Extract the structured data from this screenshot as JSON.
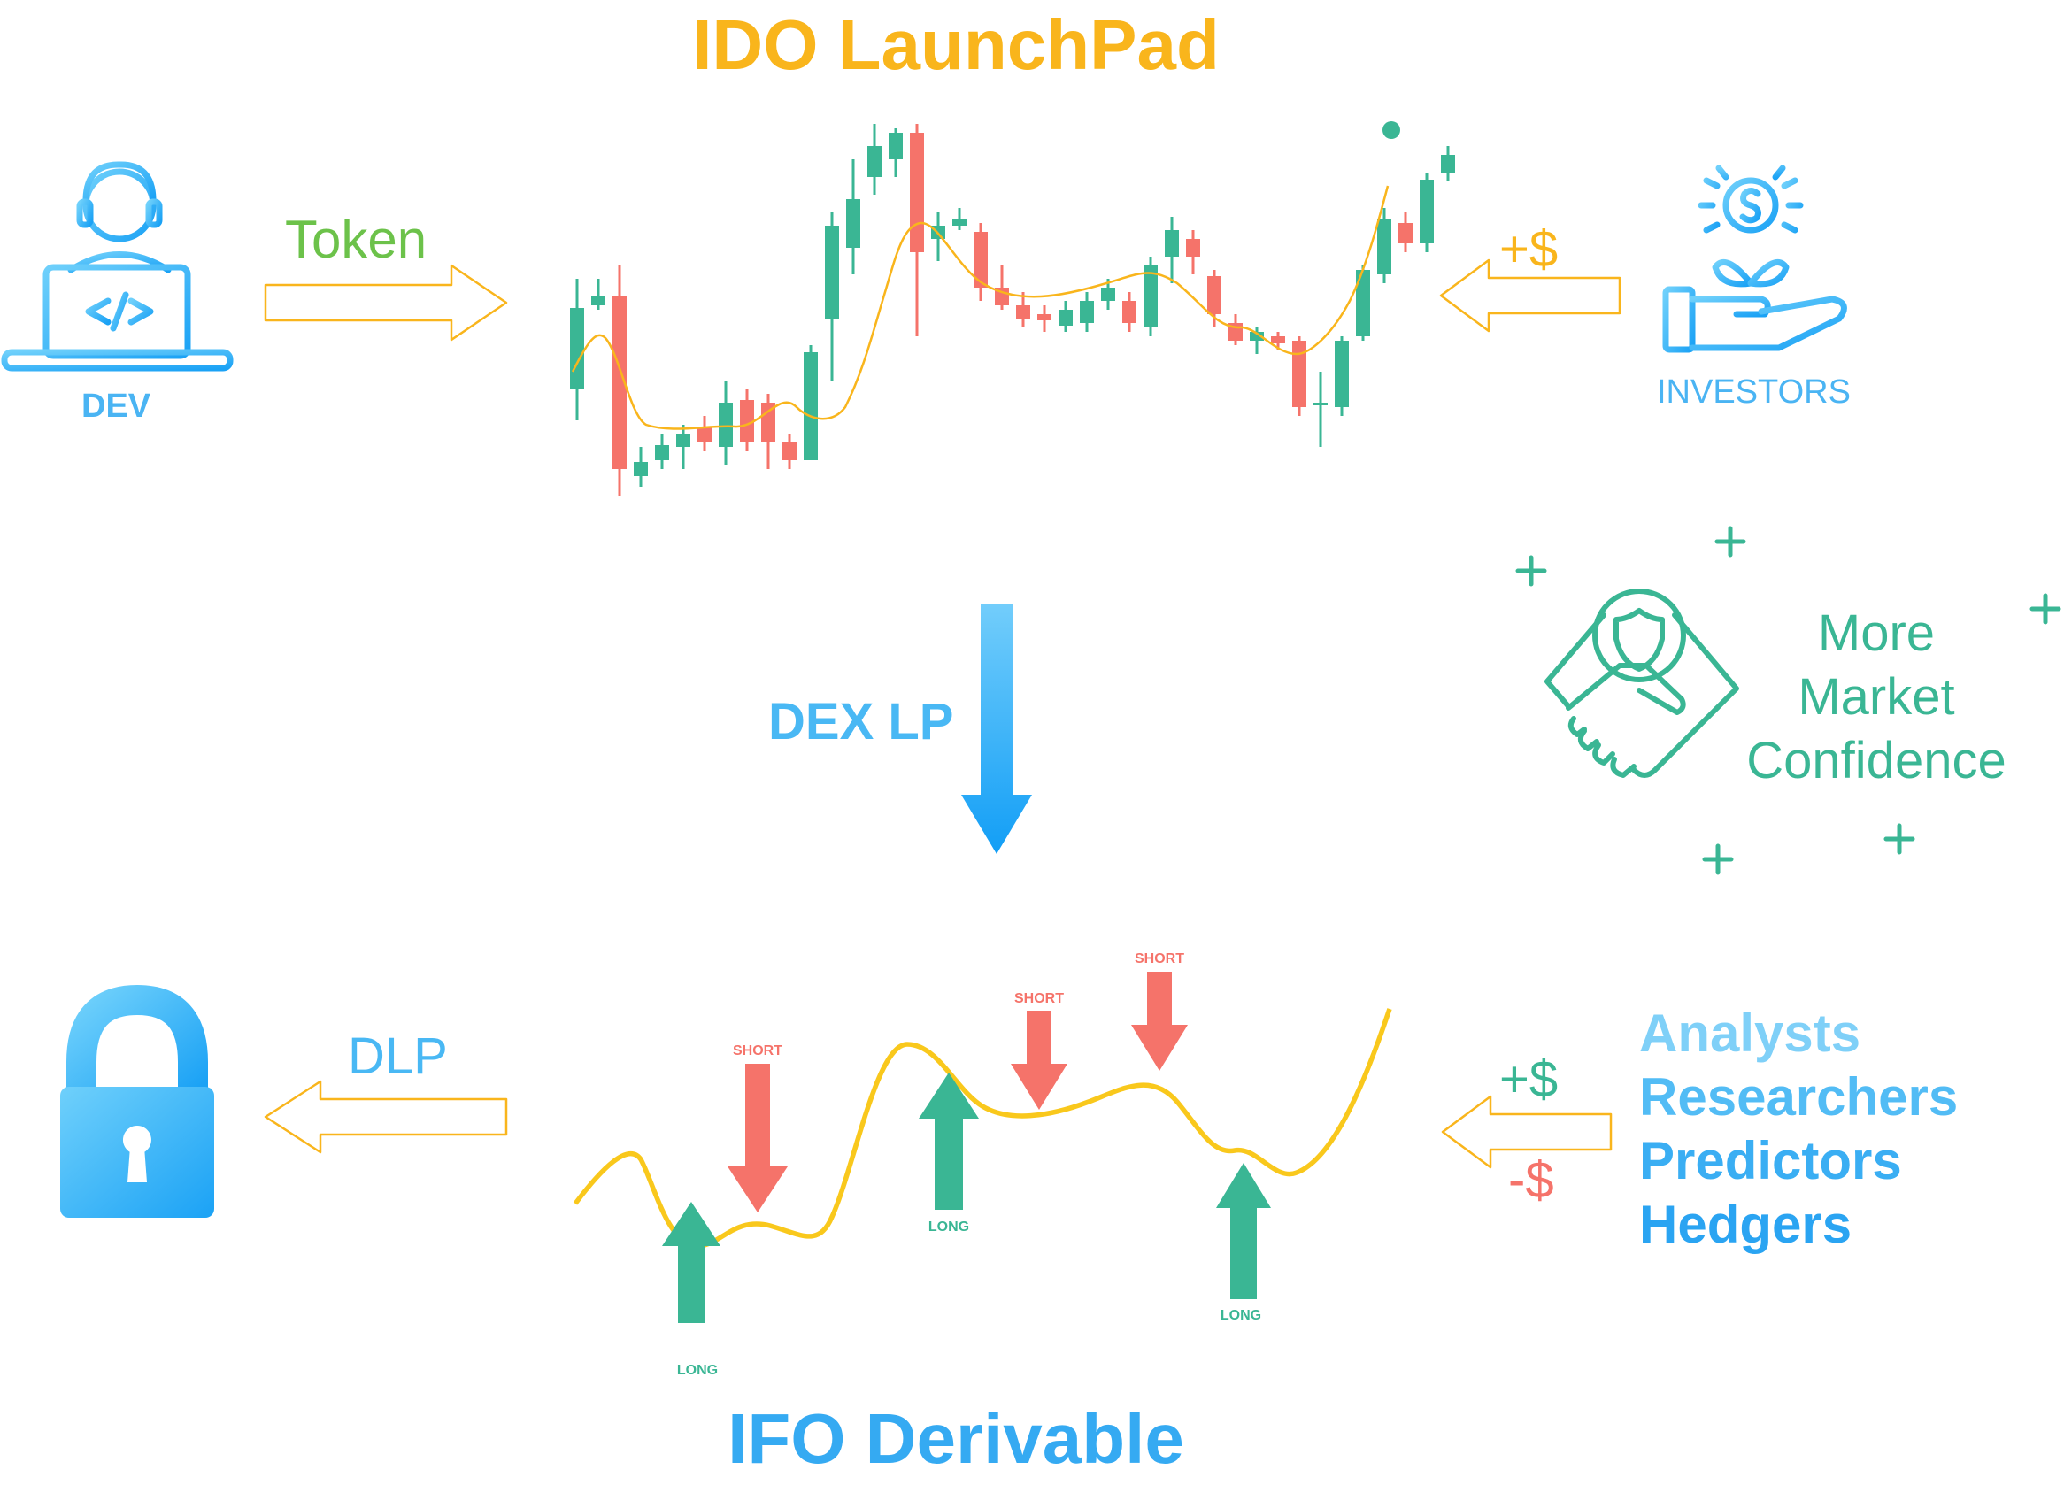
{
  "titles": {
    "top": "IDO LaunchPad",
    "bottom": "IFO Derivable"
  },
  "actors": {
    "dev_label": "DEV",
    "investors_label": "INVESTORS"
  },
  "flows": {
    "token_label": "Token",
    "investor_money_label": "+$",
    "dex_lp_label": "DEX LP",
    "dlp_label": "DLP",
    "gain_label": "+$",
    "loss_label": "-$"
  },
  "confidence": {
    "line1": "More",
    "line2": "Market",
    "line3": "Confidence"
  },
  "roles": [
    "Analysts",
    "Researchers",
    "Predictors",
    "Hedgers"
  ],
  "signals": {
    "long_label": "LONG",
    "short_label": "SHORT"
  },
  "colors": {
    "yellow": "#f9b51c",
    "blue": "#35aaf2",
    "teal": "#3ab694",
    "red": "#f5736a",
    "green_token": "#6cc24a"
  },
  "icons": [
    "developer-laptop-icon",
    "investor-money-plant-icon",
    "handshake-shield-icon",
    "padlock-icon",
    "plus-icon"
  ]
}
